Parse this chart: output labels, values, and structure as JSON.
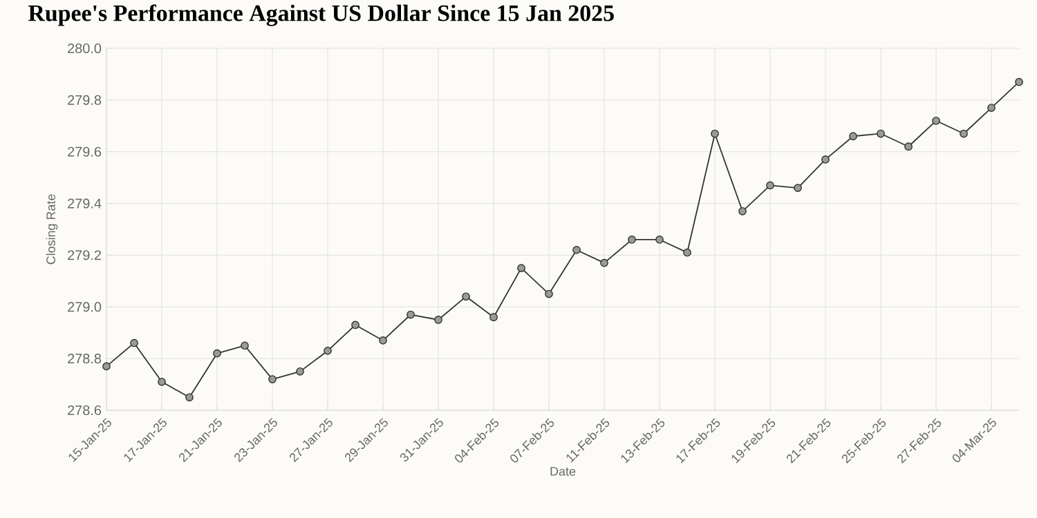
{
  "chart_data": {
    "type": "line",
    "title": "Rupee's Performance Against US Dollar Since 15 Jan 2025",
    "xlabel": "Date",
    "ylabel": "Closing Rate",
    "categories": [
      "15-Jan-25",
      null,
      "17-Jan-25",
      null,
      "21-Jan-25",
      null,
      "23-Jan-25",
      null,
      "27-Jan-25",
      null,
      "29-Jan-25",
      null,
      "31-Jan-25",
      null,
      "04-Feb-25",
      null,
      "07-Feb-25",
      null,
      "11-Feb-25",
      null,
      "13-Feb-25",
      null,
      "17-Feb-25",
      null,
      "19-Feb-25",
      null,
      "21-Feb-25",
      null,
      "25-Feb-25",
      null,
      "27-Feb-25",
      null,
      "04-Mar-25",
      null
    ],
    "series": [
      {
        "color": "#333333",
        "values": [
          278.77,
          278.86,
          278.71,
          278.65,
          278.82,
          278.85,
          278.72,
          278.75,
          278.83,
          278.93,
          278.87,
          278.97,
          278.95,
          279.04,
          278.96,
          279.15,
          279.05,
          279.22,
          279.17,
          279.26,
          279.26,
          279.21,
          279.67,
          279.37,
          279.47,
          279.46,
          279.57,
          279.66,
          279.67,
          279.62,
          279.72,
          279.67,
          279.77,
          279.87
        ]
      }
    ],
    "ylim": [
      278.6,
      280.0
    ],
    "yticks": [
      {
        "value": 278.6,
        "label": "278.6"
      },
      {
        "value": 278.8,
        "label": "278.8"
      },
      {
        "value": 279.0,
        "label": "279.0"
      },
      {
        "value": 279.2,
        "label": "279.2"
      },
      {
        "value": 279.4,
        "label": "279.4"
      },
      {
        "value": 279.6,
        "label": "279.6"
      },
      {
        "value": 279.8,
        "label": "279.8"
      },
      {
        "value": 280.0,
        "label": "280.0"
      }
    ],
    "grid": true,
    "marker": "circle",
    "line_style": "solid"
  }
}
